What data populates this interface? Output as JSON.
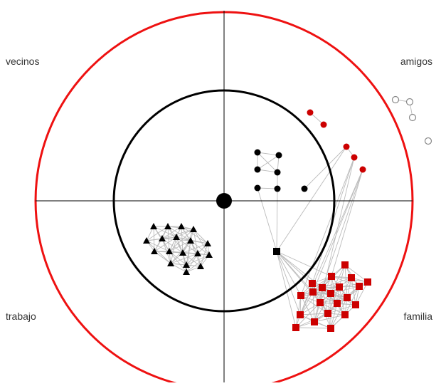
{
  "labels": {
    "top_left": "vecinos",
    "top_right": "amigos",
    "bottom_left": "trabajo",
    "bottom_right": "familia"
  },
  "colors": {
    "outer_circle": "#ee1111",
    "inner_circle": "#000000",
    "axes": "#000000",
    "edge": "#bbbbbb",
    "node_black": "#000000",
    "node_red": "#cc0000",
    "node_empty": "#888888"
  }
}
